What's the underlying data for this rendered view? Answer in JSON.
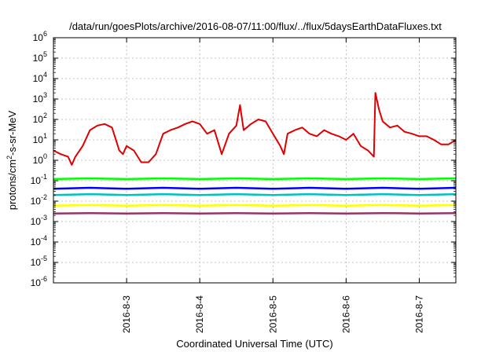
{
  "chart_data": {
    "type": "line",
    "title": "/data/run/goesPlots/archive/2016-08-07/11:00/flux/../flux/5daysEarthDataFluxes.txt",
    "xlabel": "Coordinated Universal Time (UTC)",
    "ylabel_prefix": "protons/cm",
    "ylabel_sup": "2",
    "ylabel_suffix": "-s-sr-MeV",
    "yscale": "log",
    "ylim": [
      1e-06,
      1000000.0
    ],
    "xlim": [
      0,
      5.5
    ],
    "grid": true,
    "x_ticks": [
      {
        "x": 1,
        "label": "2016-8-3"
      },
      {
        "x": 2,
        "label": "2016-8-4"
      },
      {
        "x": 3,
        "label": "2016-8-5"
      },
      {
        "x": 4,
        "label": "2016-8-6"
      },
      {
        "x": 5,
        "label": "2016-8-7"
      }
    ],
    "y_ticks": [
      {
        "v": -6,
        "base": "10",
        "exp": "-6"
      },
      {
        "v": -5,
        "base": "10",
        "exp": "-5"
      },
      {
        "v": -4,
        "base": "10",
        "exp": "-4"
      },
      {
        "v": -3,
        "base": "10",
        "exp": "-3"
      },
      {
        "v": -2,
        "base": "10",
        "exp": "-2"
      },
      {
        "v": -1,
        "base": "10",
        "exp": "-1"
      },
      {
        "v": 0,
        "base": "10",
        "exp": "0"
      },
      {
        "v": 1,
        "base": "10",
        "exp": "1"
      },
      {
        "v": 2,
        "base": "10",
        "exp": "2"
      },
      {
        "v": 3,
        "base": "10",
        "exp": "3"
      },
      {
        "v": 4,
        "base": "10",
        "exp": "4"
      },
      {
        "v": 5,
        "base": "10",
        "exp": "5"
      },
      {
        "v": 6,
        "base": "10",
        "exp": "6"
      }
    ],
    "series": [
      {
        "color": "#e00000",
        "x": [
          0,
          0.1,
          0.2,
          0.25,
          0.3,
          0.4,
          0.5,
          0.6,
          0.7,
          0.8,
          0.9,
          0.95,
          1.0,
          1.1,
          1.2,
          1.3,
          1.4,
          1.5,
          1.6,
          1.7,
          1.8,
          1.9,
          2.0,
          2.1,
          2.2,
          2.3,
          2.4,
          2.5,
          2.55,
          2.6,
          2.7,
          2.8,
          2.9,
          3.0,
          3.1,
          3.15,
          3.2,
          3.3,
          3.4,
          3.5,
          3.6,
          3.7,
          3.8,
          3.9,
          4.0,
          4.1,
          4.2,
          4.3,
          4.38,
          4.4,
          4.45,
          4.5,
          4.6,
          4.7,
          4.8,
          4.9,
          5.0,
          5.1,
          5.2,
          5.3,
          5.4,
          5.5
        ],
        "values": [
          3,
          2,
          1.5,
          0.6,
          1.5,
          5,
          30,
          50,
          60,
          40,
          3,
          2,
          5,
          3,
          0.8,
          0.8,
          2,
          20,
          30,
          40,
          60,
          80,
          60,
          20,
          30,
          2,
          20,
          50,
          500,
          30,
          60,
          100,
          80,
          20,
          5,
          2,
          20,
          30,
          40,
          20,
          15,
          30,
          20,
          15,
          10,
          20,
          5,
          3,
          1.5,
          2000,
          300,
          80,
          40,
          50,
          25,
          20,
          15,
          15,
          10,
          6,
          6,
          10
        ]
      },
      {
        "color": "#00ff00",
        "x": [
          0,
          0.5,
          1.0,
          1.5,
          2.0,
          2.5,
          3.0,
          3.5,
          4.0,
          4.5,
          5.0,
          5.5
        ],
        "values": [
          0.12,
          0.13,
          0.12,
          0.13,
          0.12,
          0.13,
          0.12,
          0.13,
          0.12,
          0.13,
          0.12,
          0.13
        ]
      },
      {
        "color": "#0000ff",
        "x": [
          0,
          0.5,
          1.0,
          1.5,
          2.0,
          2.5,
          3.0,
          3.5,
          4.0,
          4.5,
          5.0,
          5.5
        ],
        "values": [
          0.04,
          0.045,
          0.04,
          0.045,
          0.04,
          0.045,
          0.04,
          0.045,
          0.04,
          0.045,
          0.04,
          0.045
        ]
      },
      {
        "color": "#00c0c0",
        "x": [
          0,
          0.5,
          1.0,
          1.5,
          2.0,
          2.5,
          3.0,
          3.5,
          4.0,
          4.5,
          5.0,
          5.5
        ],
        "values": [
          0.02,
          0.022,
          0.02,
          0.022,
          0.02,
          0.022,
          0.02,
          0.022,
          0.02,
          0.022,
          0.02,
          0.022
        ]
      },
      {
        "color": "#ffff00",
        "x": [
          0,
          0.5,
          1.0,
          1.5,
          2.0,
          2.5,
          3.0,
          3.5,
          4.0,
          4.5,
          5.0,
          5.5
        ],
        "values": [
          0.006,
          0.0065,
          0.006,
          0.0065,
          0.006,
          0.0065,
          0.006,
          0.0065,
          0.006,
          0.0065,
          0.006,
          0.0065
        ]
      },
      {
        "color": "#993366",
        "x": [
          0,
          0.5,
          1.0,
          1.5,
          2.0,
          2.5,
          3.0,
          3.5,
          4.0,
          4.5,
          5.0,
          5.5
        ],
        "values": [
          0.0025,
          0.0026,
          0.0025,
          0.0026,
          0.0025,
          0.0026,
          0.0025,
          0.0026,
          0.0025,
          0.0026,
          0.0025,
          0.0026
        ]
      }
    ]
  }
}
